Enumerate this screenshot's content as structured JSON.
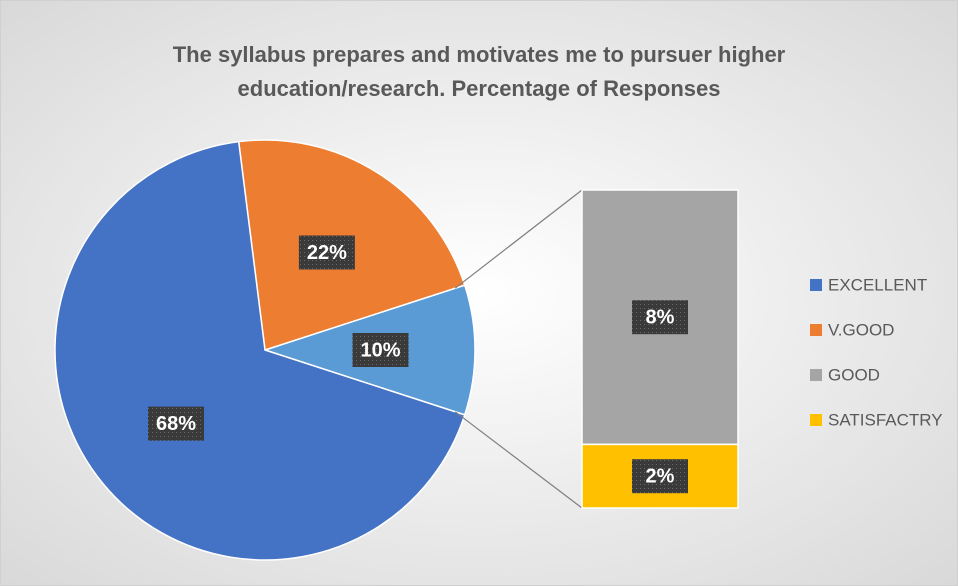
{
  "chart_data": {
    "type": "pie-of-bar",
    "title": "The syllabus prepares and motivates me to pursuer higher education/research. Percentage of Responses",
    "categories": [
      "EXCELLENT",
      "V.GOOD",
      "GOOD",
      "SATISFACTRY"
    ],
    "values": [
      68,
      22,
      8,
      2
    ],
    "value_labels": [
      "68%",
      "22%",
      "8%",
      "2%"
    ],
    "colors": [
      "#4472c4",
      "#ed7d31",
      "#a5a5a5",
      "#ffc000"
    ],
    "other_value": 10,
    "other_label": "10%",
    "other_color": "#5b9bd5",
    "legend": "right"
  }
}
